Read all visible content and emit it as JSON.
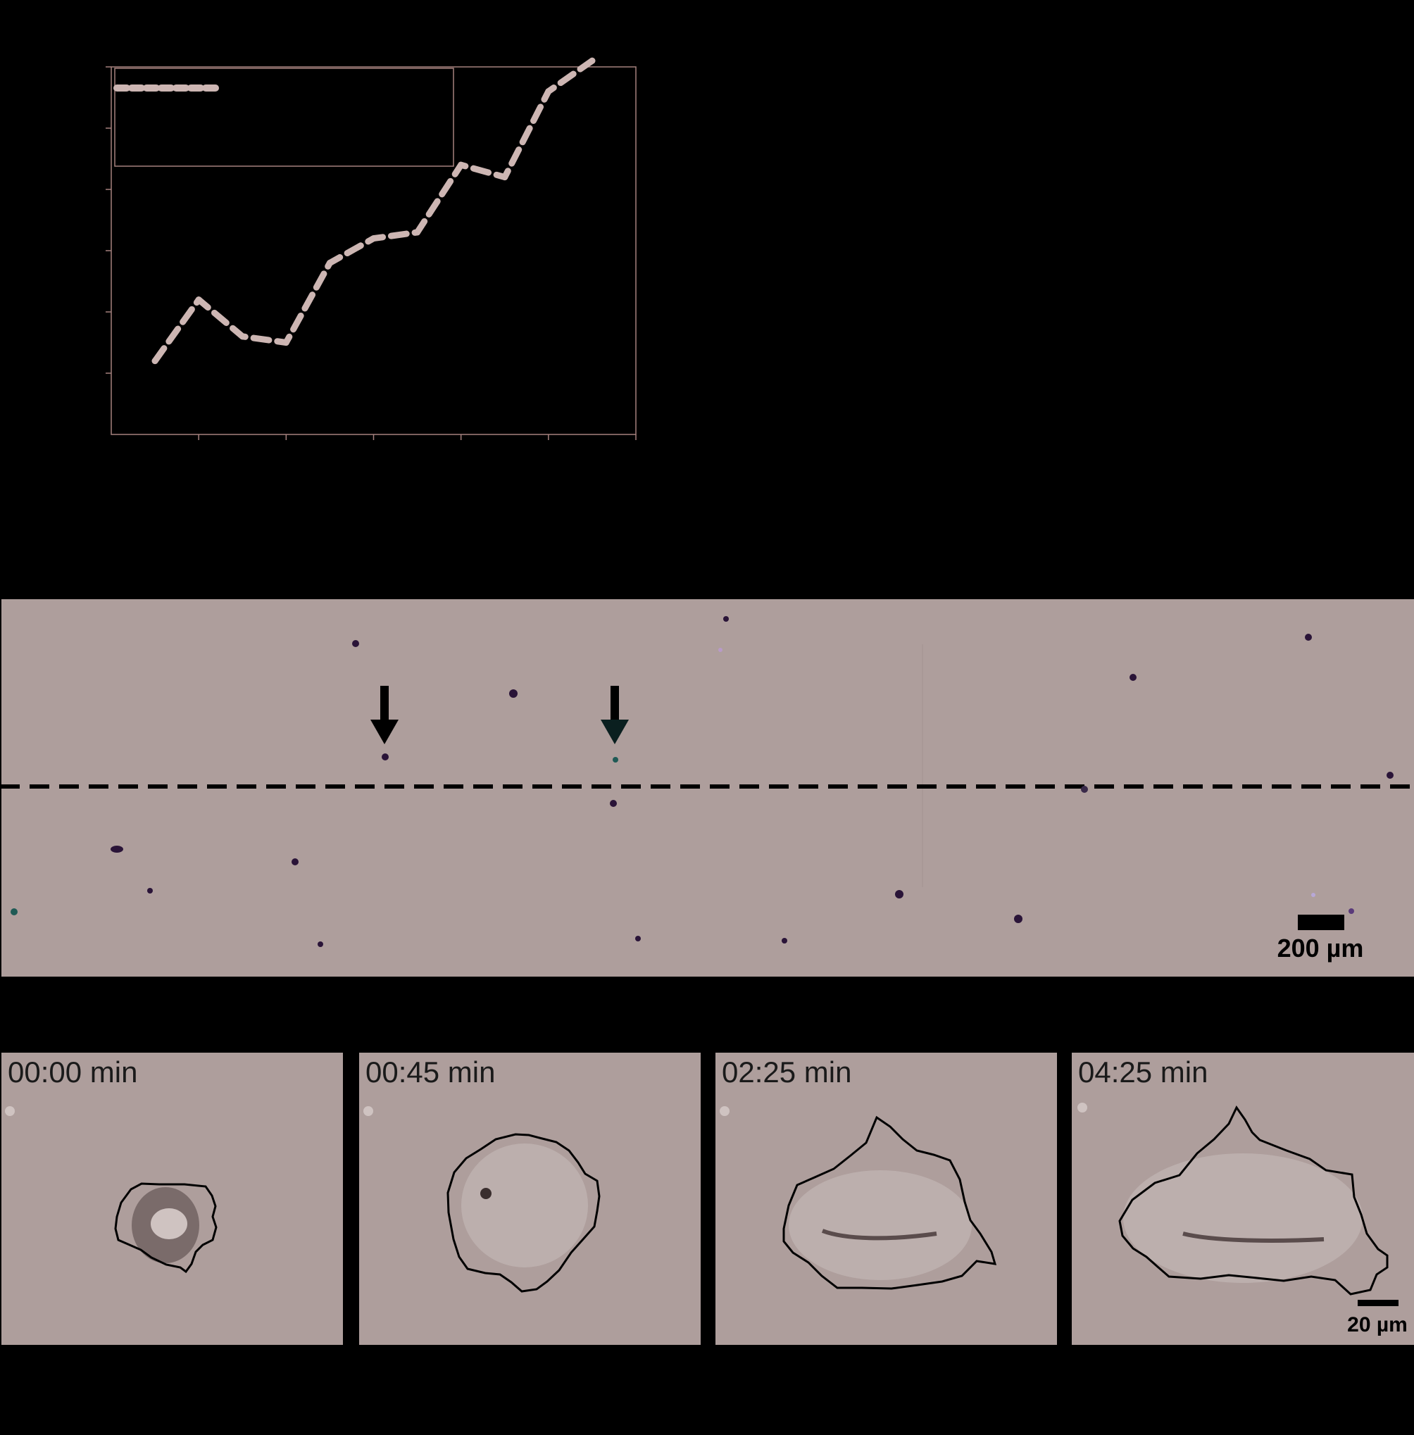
{
  "chart_data": {
    "type": "line",
    "x": [
      1,
      2,
      3,
      4,
      5,
      6,
      7,
      8,
      9,
      10,
      11
    ],
    "values": [
      0.0,
      0.5,
      0.2,
      0.15,
      0.8,
      1.0,
      1.05,
      1.6,
      1.5,
      2.2,
      2.45
    ],
    "ylim": [
      -0.6,
      2.4
    ],
    "xlim": [
      0,
      12
    ],
    "legend": "top-left",
    "grid": false
  },
  "colors": {
    "background": "#000000",
    "line": "#cdb6b3",
    "axis": "#a5817e",
    "micrograph": "#ae9e9c",
    "cell": "#2a1438"
  },
  "strip": {
    "scale_label": "200 µm",
    "arrows": [
      "down-arrow-icon",
      "down-arrow-icon"
    ]
  },
  "timelapse": {
    "frames": [
      {
        "time": "00:00 min"
      },
      {
        "time": "00:45 min"
      },
      {
        "time": "02:25 min"
      },
      {
        "time": "04:25 min"
      }
    ],
    "scale_label": "20 µm"
  }
}
